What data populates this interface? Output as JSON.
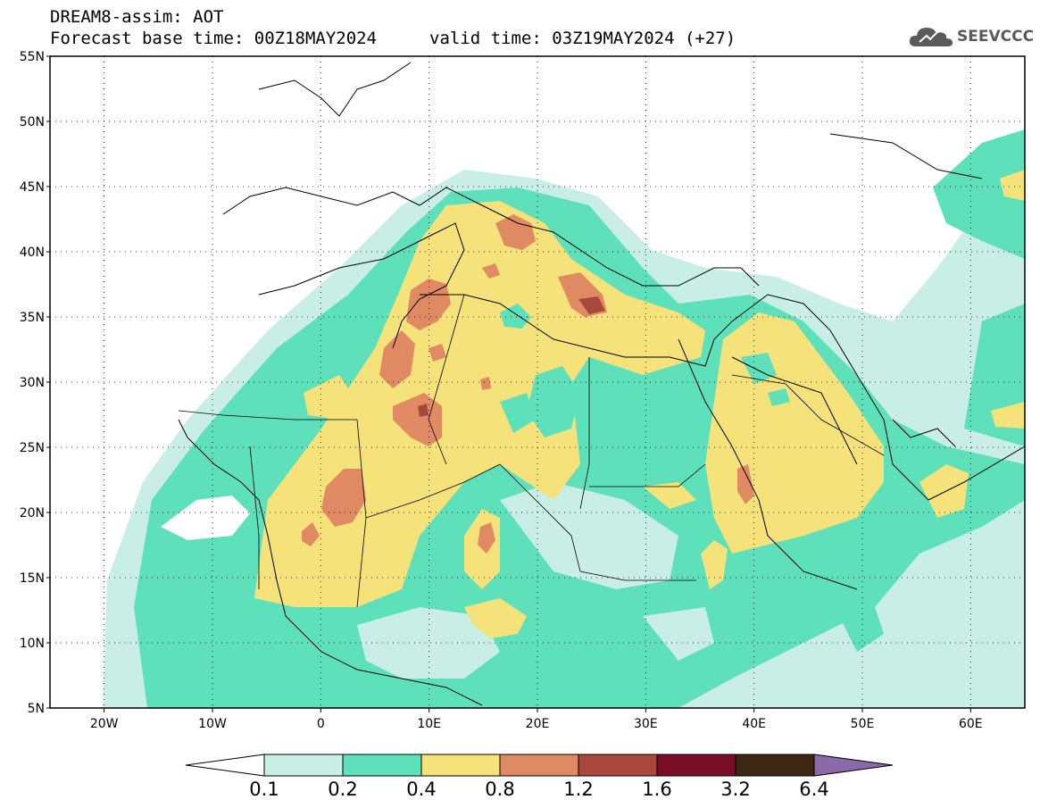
{
  "header": {
    "model_line": "DREAM8-assim: AOT",
    "base_time_line": "Forecast base time: 00Z18MAY2024",
    "valid_time_line": "valid time: 03Z19MAY2024 (+27)",
    "logo_text": "SEEVCCC",
    "logo_icon": "cloud-icon"
  },
  "map": {
    "lat_labels": [
      "55N",
      "50N",
      "45N",
      "40N",
      "35N",
      "30N",
      "25N",
      "20N",
      "15N",
      "10N",
      "5N"
    ],
    "lon_labels": [
      "20W",
      "10W",
      "0",
      "10E",
      "20E",
      "30E",
      "40E",
      "50E",
      "60E"
    ],
    "colors": {
      "0.1-0.2": "#c8eee6",
      "0.2-0.4": "#5ee0bb",
      "0.4-0.8": "#f5e27a",
      "0.8-1.2": "#e08a63",
      "1.2-1.6": "#a8473c",
      "1.6-3.2": "#7a0e26",
      "3.2-6.4": "#3d2614",
      "over": "#8a6aa8"
    }
  },
  "colorbar": {
    "tick_labels": [
      "0.1",
      "0.2",
      "0.4",
      "0.8",
      "1.2",
      "1.6",
      "3.2",
      "6.4"
    ],
    "bands": [
      "#c8eee6",
      "#5ee0bb",
      "#f5e27a",
      "#e08a63",
      "#a8473c",
      "#7a0e26",
      "#3d2614"
    ],
    "under_color": "#ffffff",
    "over_color": "#8a6aa8"
  }
}
